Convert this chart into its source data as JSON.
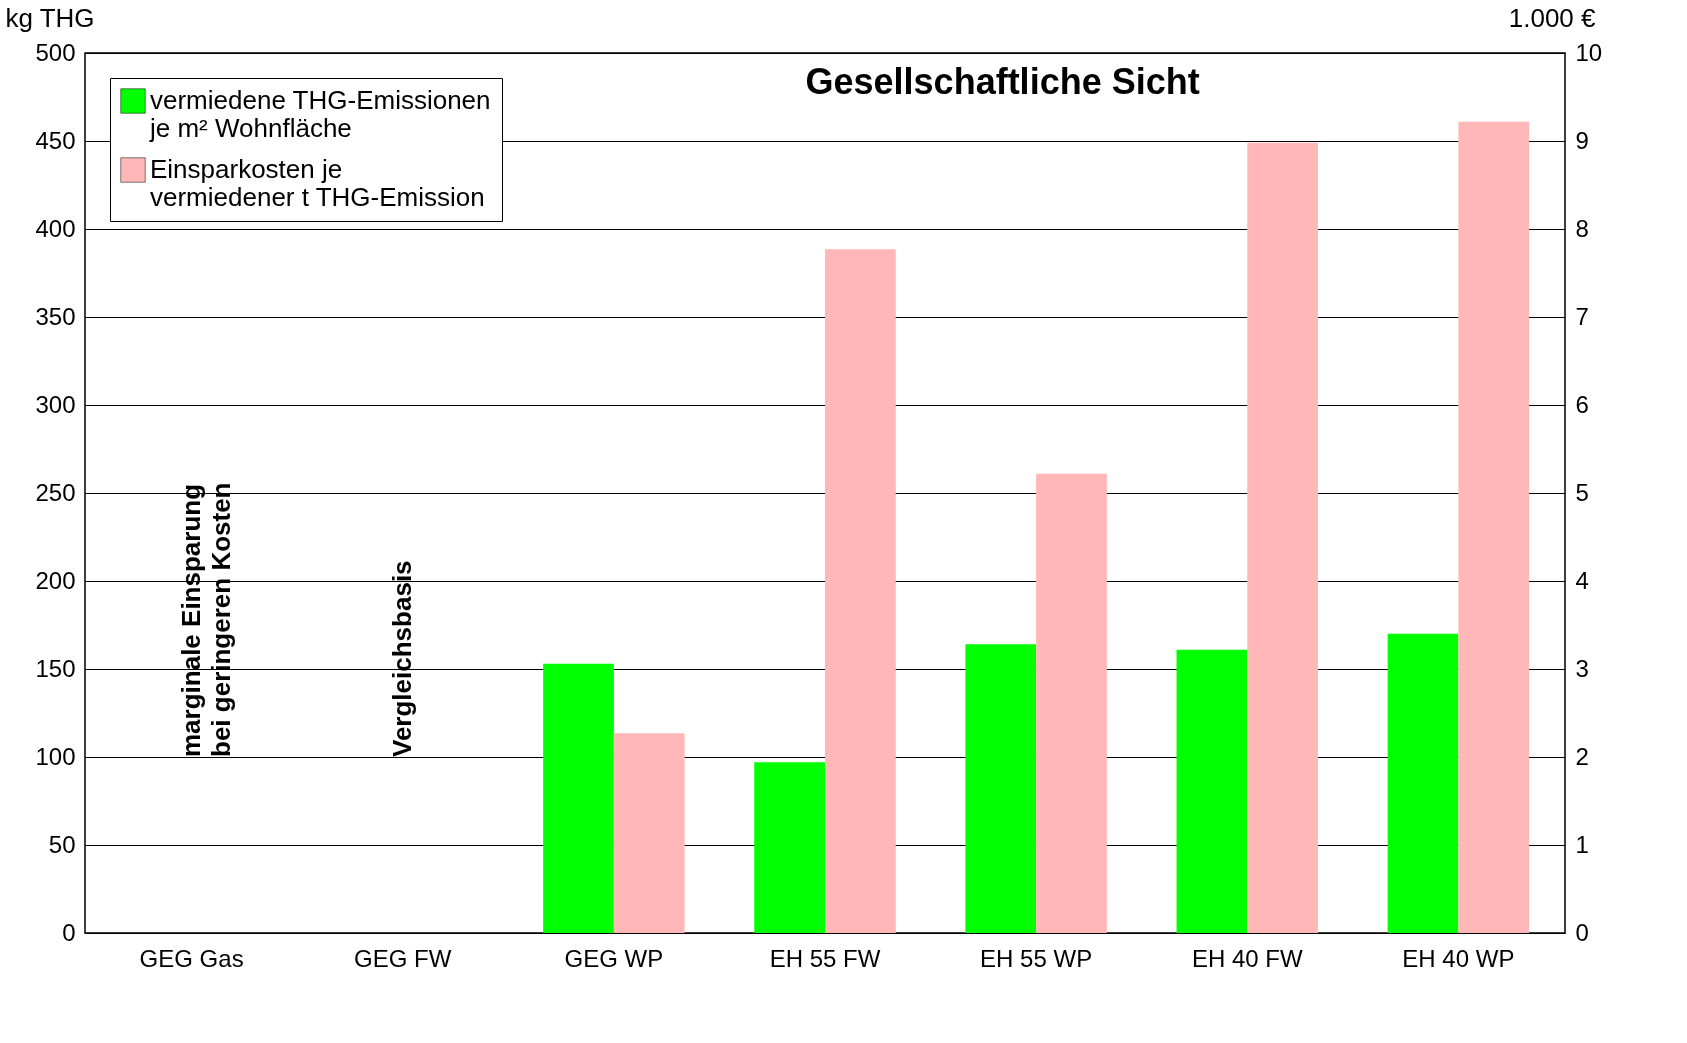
{
  "chart_data": {
    "type": "bar",
    "title": "Gesellschaftliche Sicht",
    "ylabel": "kg THG",
    "y2label": "1.000 €",
    "categories": [
      "GEG Gas",
      "GEG FW",
      "GEG WP",
      "EH 55 FW",
      "EH 55 WP",
      "EH 40 FW",
      "EH 40 WP"
    ],
    "series": [
      {
        "name": "vermiedene THG-Emissionen\nje m² Wohnfläche",
        "color": "#00ff00",
        "values": [
          null,
          null,
          153,
          97,
          164,
          161,
          170
        ]
      },
      {
        "name": "Einsparkosten je\nvermiedener t THG-Emission",
        "color": "#ffb7b7",
        "axis": "y2",
        "values": [
          null,
          null,
          2.27,
          7.77,
          5.22,
          8.98,
          9.22
        ]
      }
    ],
    "ylim": [
      0,
      500
    ],
    "yticks": [
      0,
      50,
      100,
      150,
      200,
      250,
      300,
      350,
      400,
      450,
      500
    ],
    "y2lim": [
      0,
      10
    ],
    "y2ticks": [
      0,
      1,
      2,
      3,
      4,
      5,
      6,
      7,
      8,
      9,
      10
    ],
    "grid": "y",
    "legend": "top left",
    "annotations": [
      "marginale Einsparung\nbei geringeren Kosten",
      "Vergleichsbasis"
    ]
  }
}
